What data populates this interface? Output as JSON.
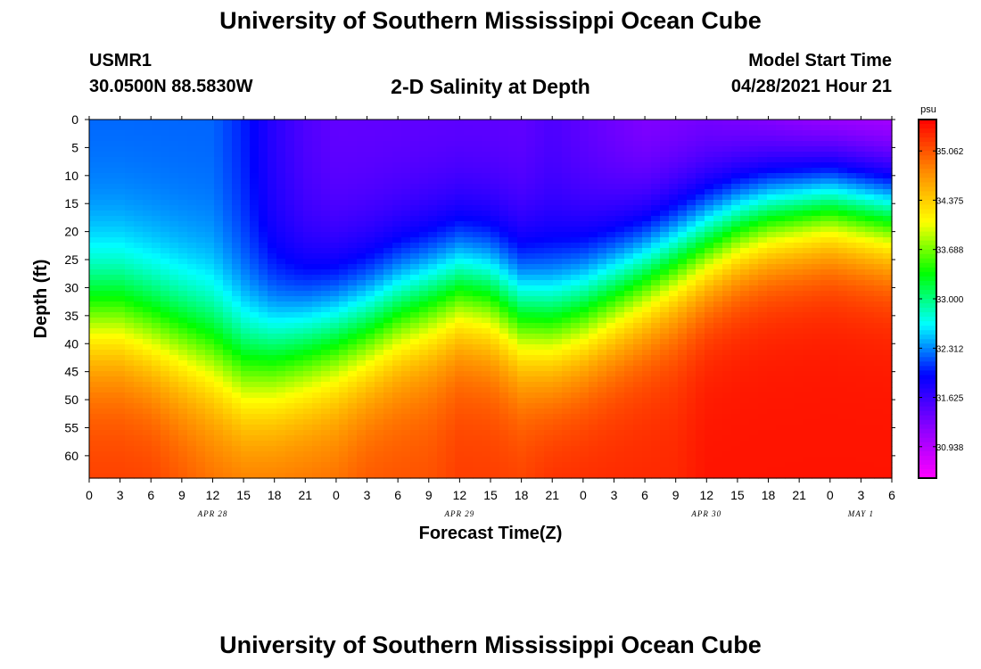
{
  "header": {
    "title": "University of Southern Mississippi Ocean Cube",
    "station_id": "USMR1",
    "station_coords": "30.0500N  88.5830W",
    "plot_title": "2-D Salinity at Depth",
    "model_start_label": "Model Start Time",
    "model_start_value": "04/28/2021 Hour 21"
  },
  "footer": {
    "title": "University of Southern Mississippi Ocean Cube"
  },
  "chart_data": {
    "type": "heatmap",
    "xlabel": "Forecast Time(Z)",
    "ylabel": "Depth (ft)",
    "y_ticks": [
      0,
      5,
      10,
      15,
      20,
      25,
      30,
      35,
      40,
      45,
      50,
      55,
      60
    ],
    "ylim": [
      0,
      64
    ],
    "x_tick_labels": [
      "0",
      "3",
      "6",
      "9",
      "12",
      "15",
      "18",
      "21",
      "0",
      "3",
      "6",
      "9",
      "12",
      "15",
      "18",
      "21",
      "0",
      "3",
      "6",
      "9",
      "12",
      "15",
      "18",
      "21",
      "0",
      "3",
      "6"
    ],
    "date_labels": [
      {
        "label": "APR 28",
        "hour_index": 12
      },
      {
        "label": "APR 29",
        "hour_index": 36
      },
      {
        "label": "APR 30",
        "hour_index": 60
      },
      {
        "label": "MAY 1",
        "hour_index": 75
      }
    ],
    "colorbar": {
      "unit": "psu",
      "ticks": [
        "35.062",
        "34.375",
        "33.688",
        "33.000",
        "32.312",
        "31.625",
        "30.938"
      ],
      "range": [
        30.5,
        35.5
      ],
      "colors": [
        "#ff00ff",
        "#8800ff",
        "#0000ff",
        "#00ffff",
        "#00ff00",
        "#ffff00",
        "#ff8800",
        "#ff0000"
      ]
    },
    "grid": false,
    "isolines": {
      "hours": [
        0,
        3,
        6,
        9,
        12,
        15,
        18,
        21,
        24,
        27,
        30,
        33,
        36,
        39,
        42,
        45,
        48,
        51,
        54,
        57,
        60,
        63,
        66,
        69,
        72,
        75,
        78
      ],
      "depth_33psu": [
        35,
        35,
        37,
        39,
        41,
        44,
        43,
        41,
        39,
        37,
        34,
        32,
        30,
        31,
        35,
        36,
        34,
        31,
        28,
        25,
        22,
        19,
        17,
        16,
        15,
        16,
        17
      ],
      "surface_psu": [
        32.2,
        32.2,
        32.2,
        32.2,
        32.2,
        32.0,
        31.7,
        31.5,
        31.4,
        31.4,
        31.4,
        31.4,
        31.4,
        31.4,
        31.4,
        31.5,
        31.4,
        31.3,
        31.2,
        31.2,
        31.2,
        31.1,
        31.0,
        30.9,
        30.8,
        30.8,
        30.8
      ],
      "bottom_psu": [
        35.2,
        35.2,
        35.2,
        35.1,
        35.0,
        35.0,
        35.0,
        35.0,
        35.0,
        35.1,
        35.1,
        35.1,
        35.2,
        35.2,
        35.2,
        35.3,
        35.3,
        35.3,
        35.3,
        35.3,
        35.4,
        35.4,
        35.4,
        35.4,
        35.4,
        35.4,
        35.4
      ]
    }
  }
}
